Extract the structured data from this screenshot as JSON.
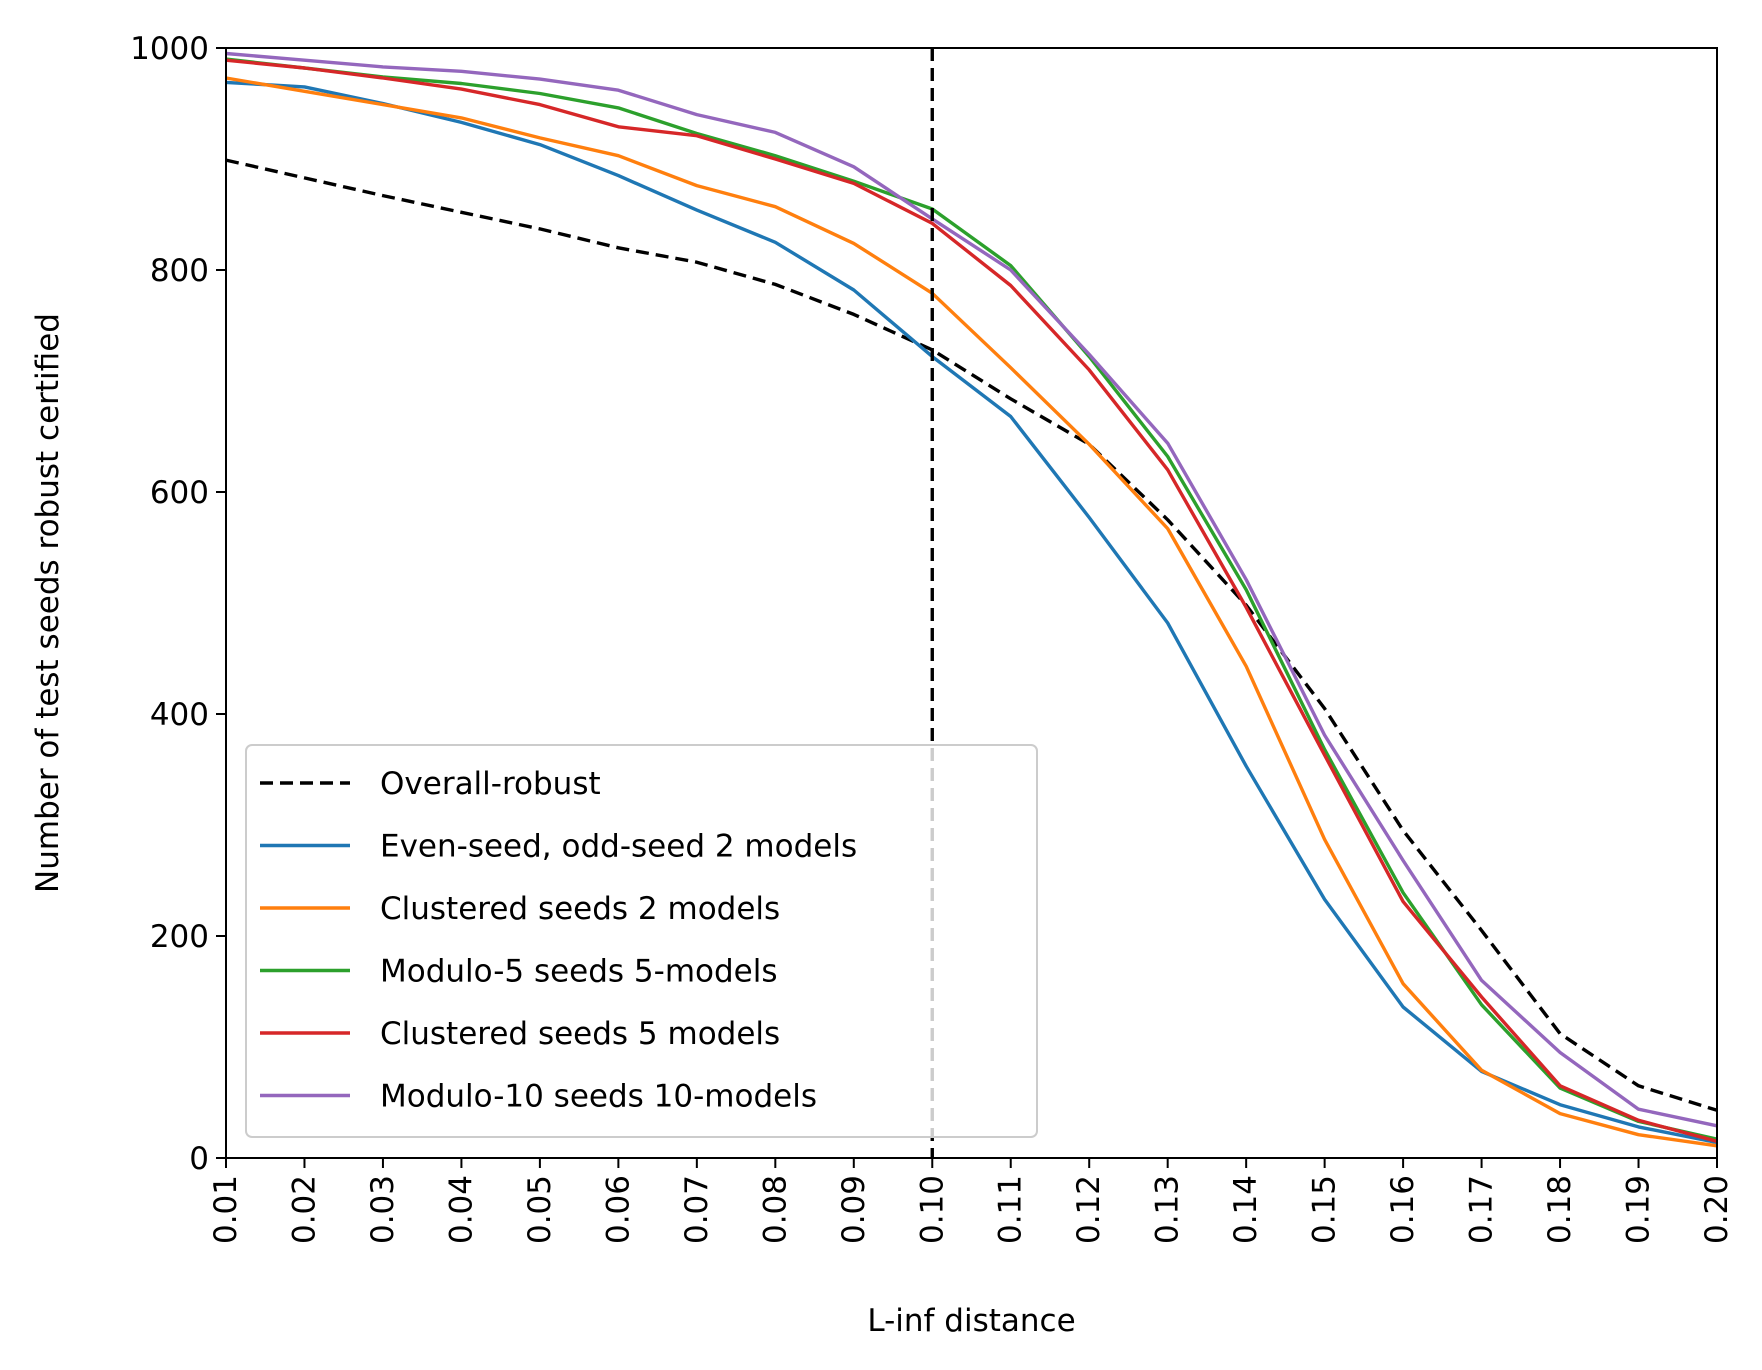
{
  "chart_data": {
    "type": "line",
    "title": "",
    "xlabel": "L-inf distance",
    "ylabel": "Number of test seeds robust certified",
    "x": [
      0.01,
      0.02,
      0.03,
      0.04,
      0.05,
      0.06,
      0.07,
      0.08,
      0.09,
      0.1,
      0.11,
      0.12,
      0.13,
      0.14,
      0.15,
      0.16,
      0.17,
      0.18,
      0.19,
      0.2
    ],
    "x_tick_labels": [
      "0.01",
      "0.02",
      "0.03",
      "0.04",
      "0.05",
      "0.06",
      "0.07",
      "0.08",
      "0.09",
      "0.10",
      "0.11",
      "0.12",
      "0.13",
      "0.14",
      "0.15",
      "0.16",
      "0.17",
      "0.18",
      "0.19",
      "0.20"
    ],
    "xlim": [
      0.01,
      0.2
    ],
    "ylim": [
      0,
      1000
    ],
    "y_ticks": [
      0,
      200,
      400,
      600,
      800,
      1000
    ],
    "y_tick_labels": [
      "0",
      "200",
      "400",
      "600",
      "800",
      "1000"
    ],
    "grid": false,
    "legend_position": "lower-left",
    "vertical_reference_line": {
      "x": 0.1,
      "style": "dashed",
      "color": "#000000"
    },
    "series": [
      {
        "name": "Overall-robust",
        "color": "#000000",
        "style": "dashed",
        "values": [
          899,
          883,
          867,
          852,
          837,
          820,
          807,
          787,
          760,
          728,
          684,
          643,
          575,
          498,
          405,
          295,
          205,
          112,
          65,
          43
        ]
      },
      {
        "name": "Even-seed, odd-seed 2 models",
        "color": "#1f77b4",
        "style": "solid",
        "values": [
          969,
          965,
          950,
          933,
          913,
          885,
          854,
          825,
          782,
          722,
          668,
          577,
          482,
          353,
          233,
          136,
          78,
          48,
          28,
          14
        ]
      },
      {
        "name": "Clustered seeds 2 models",
        "color": "#ff7f0e",
        "style": "solid",
        "values": [
          973,
          961,
          949,
          937,
          919,
          903,
          876,
          857,
          824,
          779,
          712,
          643,
          567,
          443,
          287,
          157,
          79,
          40,
          21,
          11
        ]
      },
      {
        "name": "Modulo-5 seeds 5-models",
        "color": "#2ca02c",
        "style": "solid",
        "values": [
          990,
          982,
          974,
          968,
          959,
          946,
          923,
          903,
          880,
          855,
          804,
          722,
          632,
          512,
          368,
          239,
          138,
          63,
          33,
          17
        ]
      },
      {
        "name": "Clustered seeds 5 models",
        "color": "#d62728",
        "style": "solid",
        "values": [
          989,
          982,
          973,
          963,
          949,
          929,
          921,
          900,
          878,
          842,
          786,
          710,
          620,
          496,
          363,
          231,
          145,
          65,
          34,
          15
        ]
      },
      {
        "name": "Modulo-10 seeds 10-models",
        "color": "#9467bd",
        "style": "solid",
        "values": [
          995,
          989,
          983,
          979,
          972,
          962,
          940,
          924,
          893,
          846,
          800,
          724,
          644,
          521,
          381,
          268,
          160,
          95,
          44,
          29
        ]
      }
    ]
  }
}
